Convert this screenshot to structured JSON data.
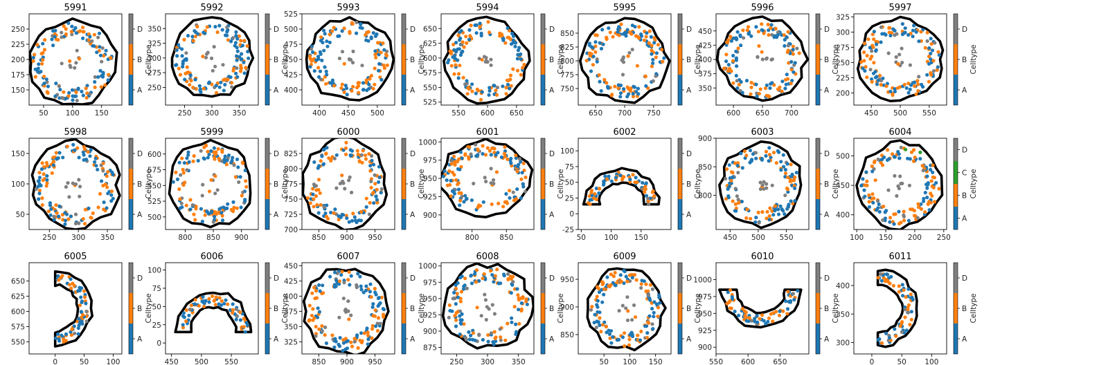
{
  "colors": {
    "A": "#1f77b4",
    "B": "#ff7f0e",
    "C": "#2ca02c",
    "D": "#7f7f7f",
    "boundary": "#000000"
  },
  "colorbar": {
    "label": "Celltype",
    "levels": [
      "A",
      "B",
      "D"
    ],
    "levels_with_c": [
      "A",
      "B",
      "C",
      "D"
    ]
  },
  "chart_data": [
    {
      "type": "scatter",
      "title": "5991",
      "shape": "ring",
      "center": [
        100,
        195
      ],
      "radius": [
        72,
        68
      ],
      "xlim": [
        25,
        185
      ],
      "ylim": [
        125,
        275
      ],
      "xticks": [
        50,
        100,
        150
      ],
      "yticks": [
        150,
        175,
        200,
        225,
        250
      ],
      "n_points": 140
    },
    {
      "type": "scatter",
      "title": "5992",
      "shape": "ring",
      "center": [
        300,
        300
      ],
      "radius": [
        72,
        65
      ],
      "xlim": [
        215,
        385
      ],
      "ylim": [
        220,
        375
      ],
      "xticks": [
        250,
        300,
        350
      ],
      "yticks": [
        250,
        275,
        300,
        325,
        350
      ],
      "n_points": 140
    },
    {
      "type": "scatter",
      "title": "5993",
      "shape": "ring",
      "center": [
        452,
        450
      ],
      "radius": [
        72,
        65
      ],
      "xlim": [
        370,
        530
      ],
      "ylim": [
        375,
        525
      ],
      "xticks": [
        400,
        450,
        500
      ],
      "yticks": [
        400,
        425,
        450,
        475,
        500,
        525
      ],
      "n_points": 140
    },
    {
      "type": "scatter",
      "title": "5994",
      "shape": "ring",
      "center": [
        598,
        595
      ],
      "radius": [
        70,
        70
      ],
      "xlim": [
        520,
        680
      ],
      "ylim": [
        520,
        675
      ],
      "xticks": [
        550,
        600,
        650
      ],
      "yticks": [
        525,
        550,
        575,
        600,
        625,
        650
      ],
      "n_points": 140
    },
    {
      "type": "scatter",
      "title": "5995",
      "shape": "ring",
      "center": [
        700,
        800
      ],
      "radius": [
        72,
        72
      ],
      "xlim": [
        620,
        780
      ],
      "ylim": [
        720,
        885
      ],
      "xticks": [
        650,
        700,
        750
      ],
      "yticks": [
        750,
        775,
        800,
        825,
        850
      ],
      "n_points": 140
    },
    {
      "type": "scatter",
      "title": "5996",
      "shape": "ring",
      "center": [
        650,
        400
      ],
      "radius": [
        72,
        70
      ],
      "xlim": [
        570,
        730
      ],
      "ylim": [
        320,
        480
      ],
      "xticks": [
        600,
        650,
        700
      ],
      "yticks": [
        350,
        375,
        400,
        425,
        450
      ],
      "n_points": 140
    },
    {
      "type": "scatter",
      "title": "5997",
      "shape": "ring",
      "center": [
        500,
        255
      ],
      "radius": [
        72,
        65
      ],
      "xlim": [
        420,
        580
      ],
      "ylim": [
        180,
        330
      ],
      "xticks": [
        450,
        500,
        550
      ],
      "yticks": [
        200,
        225,
        250,
        275,
        300,
        325
      ],
      "n_points": 140
    },
    {
      "type": "scatter",
      "title": "5998",
      "shape": "ring",
      "center": [
        295,
        98
      ],
      "radius": [
        72,
        70
      ],
      "xlim": [
        215,
        375
      ],
      "ylim": [
        25,
        175
      ],
      "xticks": [
        250,
        300,
        350
      ],
      "yticks": [
        50,
        100,
        150
      ],
      "n_points": 140
    },
    {
      "type": "scatter",
      "title": "5999",
      "shape": "ring",
      "center": [
        845,
        552
      ],
      "radius": [
        72,
        65
      ],
      "xlim": [
        765,
        930
      ],
      "ylim": [
        480,
        625
      ],
      "xticks": [
        800,
        850,
        900
      ],
      "yticks": [
        500,
        525,
        550,
        575,
        600
      ],
      "n_points": 140
    },
    {
      "type": "scatter",
      "title": "6000",
      "shape": "ring",
      "center": [
        895,
        775
      ],
      "radius": [
        72,
        72
      ],
      "xlim": [
        820,
        985
      ],
      "ylim": [
        700,
        850
      ],
      "xticks": [
        850,
        900,
        950
      ],
      "yticks": [
        700,
        725,
        750,
        775,
        800,
        825
      ],
      "n_points": 140
    },
    {
      "type": "scatter",
      "title": "6001",
      "shape": "ring",
      "center": [
        820,
        950
      ],
      "radius": [
        65,
        50
      ],
      "xlim": [
        755,
        890
      ],
      "ylim": [
        880,
        1005
      ],
      "xticks": [
        800,
        850
      ],
      "yticks": [
        900,
        925,
        950,
        975,
        1000
      ],
      "n_points": 140
    },
    {
      "type": "scatter",
      "title": "6002",
      "shape": "arc",
      "center": [
        118,
        15
      ],
      "radius": [
        62,
        55
      ],
      "xlim": [
        45,
        200
      ],
      "ylim": [
        -25,
        120
      ],
      "xticks": [
        50,
        100,
        150
      ],
      "yticks": [
        -25,
        0,
        25,
        50,
        75,
        100
      ],
      "n_points": 70
    },
    {
      "type": "scatter",
      "title": "6003",
      "shape": "ring",
      "center": [
        505,
        818
      ],
      "radius": [
        70,
        70
      ],
      "xlim": [
        425,
        590
      ],
      "ylim": [
        740,
        900
      ],
      "xticks": [
        450,
        500,
        550
      ],
      "yticks": [
        800,
        850,
        900
      ],
      "n_points": 140
    },
    {
      "type": "scatter",
      "title": "6004",
      "shape": "ring",
      "center": [
        175,
        450
      ],
      "radius": [
        70,
        70
      ],
      "xlim": [
        95,
        255
      ],
      "ylim": [
        375,
        530
      ],
      "xticks": [
        100,
        150,
        200,
        250
      ],
      "yticks": [
        400,
        450,
        500
      ],
      "n_points": 140
    },
    {
      "type": "scatter",
      "title": "6005",
      "shape": "crescent",
      "center": [
        0,
        605
      ],
      "radius": [
        62,
        62
      ],
      "xlim": [
        -45,
        115
      ],
      "ylim": [
        530,
        680
      ],
      "xticks": [
        0,
        50,
        100
      ],
      "yticks": [
        550,
        575,
        600,
        625,
        650
      ],
      "n_points": 70
    },
    {
      "type": "scatter",
      "title": "6006",
      "shape": "arc",
      "center": [
        520,
        15
      ],
      "radius": [
        62,
        55
      ],
      "xlim": [
        440,
        595
      ],
      "ylim": [
        -15,
        110
      ],
      "xticks": [
        450,
        500,
        550
      ],
      "yticks": [
        0,
        25,
        50,
        75,
        100
      ],
      "n_points": 70
    },
    {
      "type": "scatter",
      "title": "6007",
      "shape": "ring",
      "center": [
        898,
        375
      ],
      "radius": [
        72,
        70
      ],
      "xlim": [
        820,
        985
      ],
      "ylim": [
        305,
        455
      ],
      "xticks": [
        850,
        900,
        950
      ],
      "yticks": [
        325,
        350,
        375,
        400,
        425,
        450
      ],
      "n_points": 140
    },
    {
      "type": "scatter",
      "title": "6008",
      "shape": "ring",
      "center": [
        300,
        938
      ],
      "radius": [
        70,
        62
      ],
      "xlim": [
        225,
        375
      ],
      "ylim": [
        865,
        1005
      ],
      "xticks": [
        250,
        300,
        350
      ],
      "yticks": [
        875,
        900,
        925,
        950,
        975,
        1000
      ],
      "n_points": 140
    },
    {
      "type": "scatter",
      "title": "6009",
      "shape": "ring",
      "center": [
        92,
        898
      ],
      "radius": [
        72,
        72
      ],
      "xlim": [
        0,
        180
      ],
      "ylim": [
        815,
        980
      ],
      "xticks": [
        50,
        100,
        150
      ],
      "yticks": [
        850,
        900,
        950
      ],
      "n_points": 140
    },
    {
      "type": "scatter",
      "title": "6010",
      "shape": "arc-down",
      "center": [
        620,
        985
      ],
      "radius": [
        62,
        55
      ],
      "xlim": [
        550,
        695
      ],
      "ylim": [
        890,
        1025
      ],
      "xticks": [
        550,
        600,
        650
      ],
      "yticks": [
        900,
        925,
        950,
        975,
        1000
      ],
      "n_points": 70
    },
    {
      "type": "scatter",
      "title": "6011",
      "shape": "crescent",
      "center": [
        10,
        360
      ],
      "radius": [
        65,
        68
      ],
      "xlim": [
        -30,
        125
      ],
      "ylim": [
        280,
        440
      ],
      "xticks": [
        0,
        50,
        100
      ],
      "yticks": [
        300,
        350,
        400
      ],
      "n_points": 70
    }
  ]
}
